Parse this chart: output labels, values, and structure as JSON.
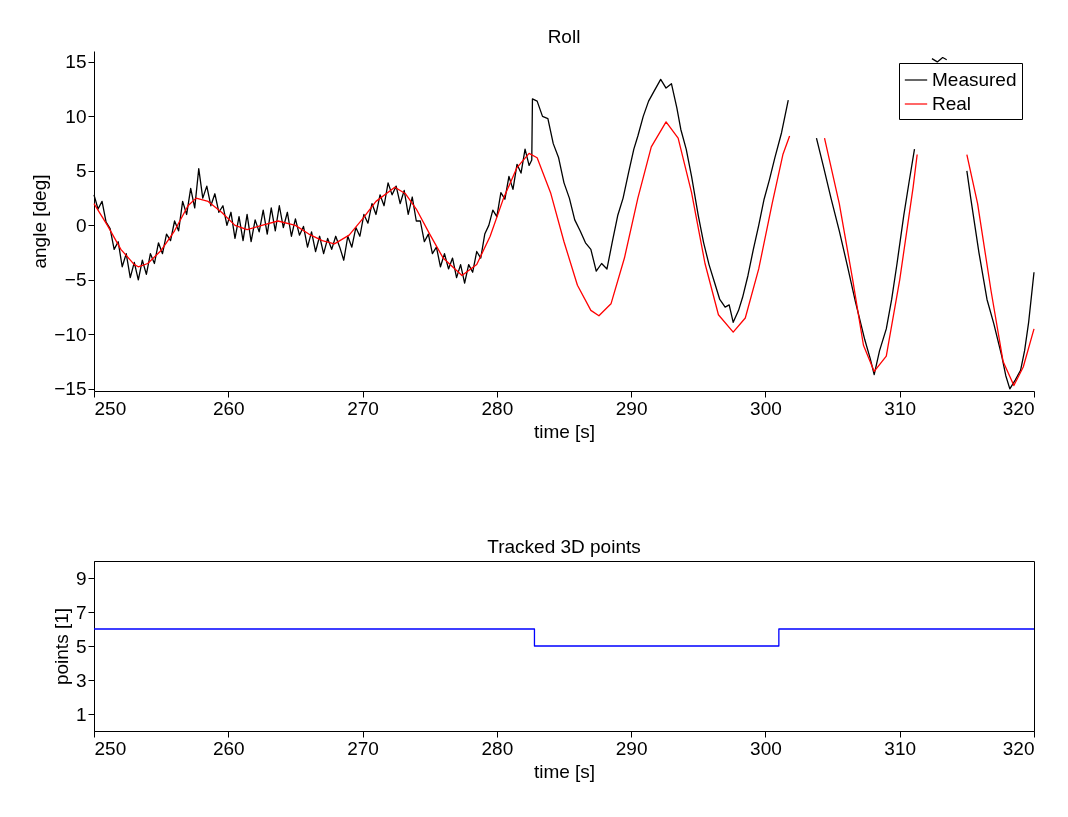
{
  "chart_data": [
    {
      "type": "line",
      "title": "Roll",
      "xlabel": "time [s]",
      "ylabel": "angle [deg]",
      "xlim": [
        250,
        320
      ],
      "xticks": [
        250,
        260,
        270,
        280,
        290,
        300,
        310,
        320
      ],
      "ylim": [
        -15.2,
        16
      ],
      "yticks": [
        -15,
        -10,
        -5,
        0,
        5,
        10,
        15
      ],
      "grid": false,
      "legend": "top right",
      "series": [
        {
          "name": "Measured",
          "color": "#000000",
          "x": [
            250,
            250.3,
            250.6,
            250.9,
            251.2,
            251.5,
            251.8,
            252.1,
            252.4,
            252.7,
            253,
            253.3,
            253.6,
            253.9,
            254.2,
            254.5,
            254.8,
            255.1,
            255.4,
            255.7,
            256,
            256.3,
            256.6,
            256.9,
            257.2,
            257.5,
            257.8,
            258.1,
            258.4,
            258.7,
            259,
            259.3,
            259.6,
            259.9,
            260.2,
            260.5,
            260.8,
            261.1,
            261.4,
            261.7,
            262,
            262.3,
            262.6,
            262.9,
            263.2,
            263.5,
            263.8,
            264.1,
            264.4,
            264.7,
            265,
            265.3,
            265.6,
            265.9,
            266.2,
            266.5,
            266.8,
            267.1,
            267.4,
            267.7,
            268,
            268.3,
            268.6,
            268.9,
            269.2,
            269.5,
            269.8,
            270.1,
            270.4,
            270.7,
            271,
            271.3,
            271.6,
            271.9,
            272.2,
            272.5,
            272.8,
            273.1,
            273.4,
            273.7,
            274,
            274.3,
            274.6,
            274.9,
            275.2,
            275.5,
            275.8,
            276.1,
            276.4,
            276.7,
            277,
            277.3,
            277.6,
            277.9,
            278.2,
            278.5,
            278.8,
            279.1,
            279.4,
            279.7,
            280,
            280.3,
            280.6,
            280.9,
            281.2,
            281.5,
            281.8,
            282.1,
            282.4,
            282.6,
            282.65,
            283,
            283.4,
            283.8,
            284.2,
            284.6,
            285,
            285.4,
            285.8,
            286.2,
            286.6,
            287,
            287.4,
            287.8,
            288.2,
            288.6,
            289,
            289.4,
            289.8,
            290.2,
            290.5,
            290.9,
            291.3,
            291.7,
            292.2,
            292.6,
            293,
            293.4,
            293.7,
            294.1,
            294.5,
            295,
            295.4,
            295.8,
            296.2,
            296.6,
            297,
            297.3,
            297.6,
            298,
            298.3,
            298.7,
            299.1,
            299.5,
            299.9,
            300.3,
            300.7,
            301.2,
            301.7,
            302,
            303.8,
            304.3,
            304.9,
            305.5,
            306.1,
            306.7,
            307.4,
            307.8,
            308.1,
            308.5,
            309,
            309.4,
            309.8,
            310.3,
            310.7,
            311.1,
            311.3,
            311.5,
            312.4,
            312.8,
            313.2,
            313.5,
            313.8,
            314.6,
            315,
            315.3,
            315.9,
            316.5,
            317,
            317.6,
            317.9,
            318.2,
            318.6,
            319,
            319.3,
            319.6,
            320
          ],
          "values": [
            2.8,
            1.5,
            2.2,
            0.3,
            -0.3,
            -2.2,
            -1.5,
            -3.8,
            -2.6,
            -4.8,
            -3.4,
            -5.0,
            -3.2,
            -4.5,
            -2.6,
            -3.5,
            -1.6,
            -2.6,
            -0.8,
            -1.4,
            0.4,
            -0.5,
            2.2,
            1.0,
            3.4,
            1.6,
            5.2,
            2.5,
            3.6,
            1.8,
            2.9,
            1.2,
            1.8,
            0.0,
            1.2,
            -1.2,
            0.8,
            -1.4,
            1.0,
            -1.5,
            0.5,
            -0.6,
            1.4,
            -0.8,
            1.6,
            -0.5,
            1.8,
            -0.2,
            1.2,
            -1.0,
            0.6,
            -0.9,
            -0.1,
            -2.0,
            -0.6,
            -2.4,
            -1.0,
            -2.6,
            -1.2,
            -2.2,
            -1.0,
            -2.0,
            -3.2,
            -1.0,
            -2.0,
            -0.2,
            -1.0,
            1.0,
            0.2,
            2.0,
            1.0,
            2.8,
            1.8,
            3.9,
            2.8,
            3.6,
            2.0,
            3.2,
            1.0,
            2.6,
            0.4,
            0.4,
            -1.5,
            -0.8,
            -2.6,
            -2.0,
            -3.8,
            -2.6,
            -4.0,
            -3.0,
            -4.8,
            -3.6,
            -5.3,
            -3.6,
            -4.3,
            -2.4,
            -3.0,
            -0.8,
            0.0,
            1.4,
            0.8,
            3.0,
            2.4,
            4.5,
            3.3,
            5.6,
            4.8,
            7.0,
            5.5,
            6.0,
            11.6,
            11.4,
            10.0,
            9.8,
            7.5,
            6.2,
            3.9,
            2.5,
            0.5,
            -0.5,
            -1.6,
            -2.2,
            -4.2,
            -3.5,
            -4.0,
            -1.5,
            0.9,
            2.5,
            4.8,
            7.0,
            8.2,
            10.0,
            11.4,
            12.3,
            13.4,
            12.6,
            13.0,
            10.8,
            8.8,
            7.0,
            4.5,
            0.9,
            -1.6,
            -3.6,
            -5.2,
            -6.8,
            -7.5,
            -7.3,
            -8.9,
            -7.8,
            -6.6,
            -4.6,
            -2.2,
            0.0,
            2.4,
            4.2,
            6.2,
            8.5,
            11.5,
            null,
            8.0,
            5.5,
            2.4,
            -0.5,
            -3.7,
            -7.0,
            -10.5,
            -12.2,
            -13.7,
            -11.5,
            -9.5,
            -6.8,
            -3.5,
            0.9,
            4.0,
            7.0,
            null,
            null,
            15.3,
            15.0,
            15.4,
            15.2,
            null,
            null,
            5.0,
            2.4,
            -2.5,
            -6.8,
            -9.0,
            -12.0,
            -13.8,
            -15.0,
            -14.2,
            -13.3,
            -11.5,
            -8.9,
            -4.3
          ]
        },
        {
          "name": "Real",
          "color": "#ff0000",
          "x": [
            250,
            251,
            252,
            253,
            253.3,
            254,
            255,
            256,
            257,
            257.6,
            258.5,
            259.5,
            260.5,
            261.4,
            262.5,
            263.7,
            265,
            266,
            267,
            267.9,
            269,
            270,
            271,
            272.4,
            273.2,
            274,
            275,
            276,
            277.4,
            278.5,
            279.5,
            280.5,
            281.5,
            282.4,
            283,
            284,
            285,
            286,
            287,
            287.6,
            288.5,
            289.5,
            290.5,
            291.5,
            292.6,
            293.5,
            294.5,
            295.5,
            296.5,
            297.6,
            298.5,
            299.5,
            300.5,
            301.3,
            301.8,
            302.5,
            304.4,
            305.5,
            306.5,
            307.3,
            308.1,
            309,
            310,
            311,
            311.3,
            312.5,
            315,
            315.8,
            316.8,
            317.7,
            318.5,
            319.2,
            320
          ],
          "values": [
            2.0,
            0.0,
            -2.2,
            -3.6,
            -3.8,
            -3.5,
            -2.3,
            -0.5,
            1.8,
            2.5,
            2.2,
            1.2,
            0.0,
            -0.4,
            0.0,
            0.4,
            0.0,
            -0.8,
            -1.4,
            -1.7,
            -0.9,
            0.6,
            2.2,
            3.5,
            2.9,
            1.5,
            -0.8,
            -3.0,
            -4.6,
            -3.6,
            -1.0,
            2.5,
            5.3,
            6.6,
            6.2,
            3.0,
            -1.5,
            -5.5,
            -7.8,
            -8.3,
            -7.2,
            -3.0,
            2.5,
            7.2,
            9.5,
            8.0,
            3.0,
            -3.5,
            -8.2,
            -9.8,
            -8.5,
            -4.0,
            2.0,
            6.5,
            8.2,
            null,
            8.0,
            2.0,
            -5.0,
            -11.0,
            -13.4,
            -12.0,
            -5.0,
            3.5,
            6.5,
            null,
            6.5,
            2.0,
            -6.0,
            -12.5,
            -14.7,
            -13.0,
            -9.5
          ]
        }
      ]
    },
    {
      "type": "step",
      "title": "Tracked 3D points",
      "xlabel": "time [s]",
      "ylabel": "points [1]",
      "xlim": [
        250,
        320
      ],
      "xticks": [
        250,
        260,
        270,
        280,
        290,
        300,
        310,
        320
      ],
      "ylim": [
        0,
        10
      ],
      "yticks": [
        1,
        3,
        5,
        7,
        9
      ],
      "grid": false,
      "legend": false,
      "series": [
        {
          "color": "#0000ff",
          "x": [
            250,
            282.8,
            301,
            320
          ],
          "values": [
            6,
            5,
            6,
            6
          ]
        }
      ]
    }
  ]
}
